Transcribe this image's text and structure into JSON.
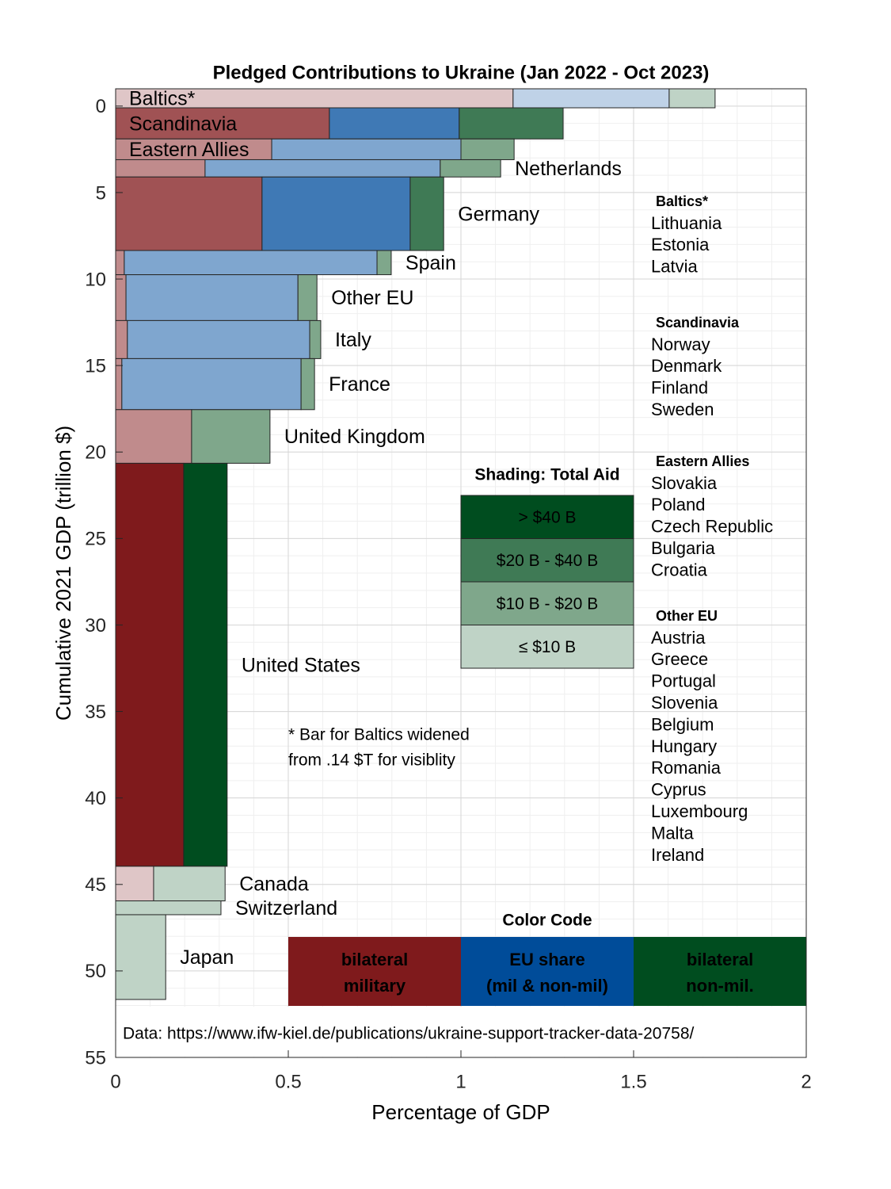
{
  "chart_data": {
    "type": "variwide_stacked_bar",
    "title": "Pledged Contributions to Ukraine (Jan 2022 - Oct 2023)",
    "x_label": "Percentage of GDP",
    "y_label": "Cumulative 2021 GDP (trillion $)",
    "xlim": [
      0,
      2
    ],
    "xticks": [
      0,
      0.5,
      1,
      1.5,
      2
    ],
    "ylim": [
      -1,
      55
    ],
    "yticks": [
      0,
      5,
      10,
      15,
      20,
      25,
      30,
      35,
      40,
      45,
      50,
      55
    ],
    "y_reversed": true,
    "grid": true,
    "minor_grid": {
      "x": 0.1,
      "y": 1
    },
    "rows": [
      {
        "name": "Baltics*",
        "gdp": 1.1,
        "values": [
          1.151,
          0.452,
          0.133
        ],
        "shade": 3,
        "label_inside": true
      },
      {
        "name": "Scandinavia",
        "gdp": 1.8,
        "values": [
          0.619,
          0.376,
          0.301
        ],
        "shade": 1,
        "label_inside": true
      },
      {
        "name": "Eastern Allies",
        "gdp": 1.2,
        "values": [
          0.452,
          0.548,
          0.154
        ],
        "shade": 2,
        "label_inside": true
      },
      {
        "name": "Netherlands",
        "gdp": 1.0,
        "values": [
          0.259,
          0.681,
          0.175
        ],
        "shade": 2
      },
      {
        "name": "Germany",
        "gdp": 4.25,
        "values": [
          0.424,
          0.429,
          0.097
        ],
        "shade": 1
      },
      {
        "name": "Spain",
        "gdp": 1.4,
        "values": [
          0.025,
          0.732,
          0.041
        ],
        "shade": 2
      },
      {
        "name": "Other EU",
        "gdp": 2.65,
        "values": [
          0.03,
          0.498,
          0.055
        ],
        "shade": 2
      },
      {
        "name": "Italy",
        "gdp": 2.2,
        "values": [
          0.034,
          0.528,
          0.032
        ],
        "shade": 2
      },
      {
        "name": "France",
        "gdp": 2.95,
        "values": [
          0.018,
          0.519,
          0.039
        ],
        "shade": 2
      },
      {
        "name": "United Kingdom",
        "gdp": 3.1,
        "values": [
          0.22,
          0,
          0.227
        ],
        "shade": 2
      },
      {
        "name": "United States",
        "gdp": 23.3,
        "values": [
          0.197,
          0,
          0.126
        ],
        "shade": 0
      },
      {
        "name": "Canada",
        "gdp": 2.0,
        "values": [
          0.11,
          0,
          0.207
        ],
        "shade": 3
      },
      {
        "name": "Switzerland",
        "gdp": 0.8,
        "values": [
          0,
          0,
          0.305
        ],
        "shade": 3
      },
      {
        "name": "Japan",
        "gdp": 4.9,
        "values": [
          0,
          0,
          0.145
        ],
        "shade": 3
      }
    ],
    "shading": {
      "title": "Shading: Total Aid",
      "items": [
        {
          "label": "> $40 B",
          "color": "#004d1f",
          "segment_colors": [
            "#7f1a1c",
            "#0b4f9c",
            "#004d1f"
          ]
        },
        {
          "label": "$20 B - $40 B",
          "color": "#3f7a55",
          "segment_colors": [
            "#a05254",
            "#3f79b5",
            "#3f7a55"
          ]
        },
        {
          "label": "$10 B - $20 B",
          "color": "#7fa78b",
          "segment_colors": [
            "#c08b8c",
            "#7fa6cf",
            "#7fa78b"
          ]
        },
        {
          "label": "≤ $10 B",
          "color": "#bfd3c6",
          "segment_colors": [
            "#dfc6c7",
            "#bfd2e7",
            "#bfd3c6"
          ]
        }
      ]
    },
    "color_code": {
      "title": "Color Code",
      "items": [
        {
          "label": [
            "bilateral",
            "military"
          ],
          "color": "#7f1a1c"
        },
        {
          "label": [
            "EU share",
            "(mil & non-mil)"
          ],
          "color": "#004c99"
        },
        {
          "label": [
            "bilateral",
            "non-mil."
          ],
          "color": "#004d1f"
        }
      ]
    },
    "groups": [
      {
        "name": "Baltics*",
        "members": [
          "Lithuania",
          "Estonia",
          "Latvia"
        ]
      },
      {
        "name": "Scandinavia",
        "members": [
          "Norway",
          "Denmark",
          "Finland",
          "Sweden"
        ]
      },
      {
        "name": "Eastern Allies",
        "members": [
          "Slovakia",
          "Poland",
          "Czech Republic",
          "Bulgaria",
          "Croatia"
        ]
      },
      {
        "name": "Other EU",
        "members": [
          "Austria",
          "Greece",
          "Portugal",
          "Slovenia",
          "Belgium",
          "Hungary",
          "Romania",
          "Cyprus",
          "Luxembourg",
          "Malta",
          "Ireland"
        ]
      }
    ],
    "note": [
      "* Bar for Baltics widened",
      "from .14 $T for visiblity"
    ],
    "source": "Data: https://www.ifw-kiel.de/publications/ukraine-support-tracker-data-20758/"
  }
}
